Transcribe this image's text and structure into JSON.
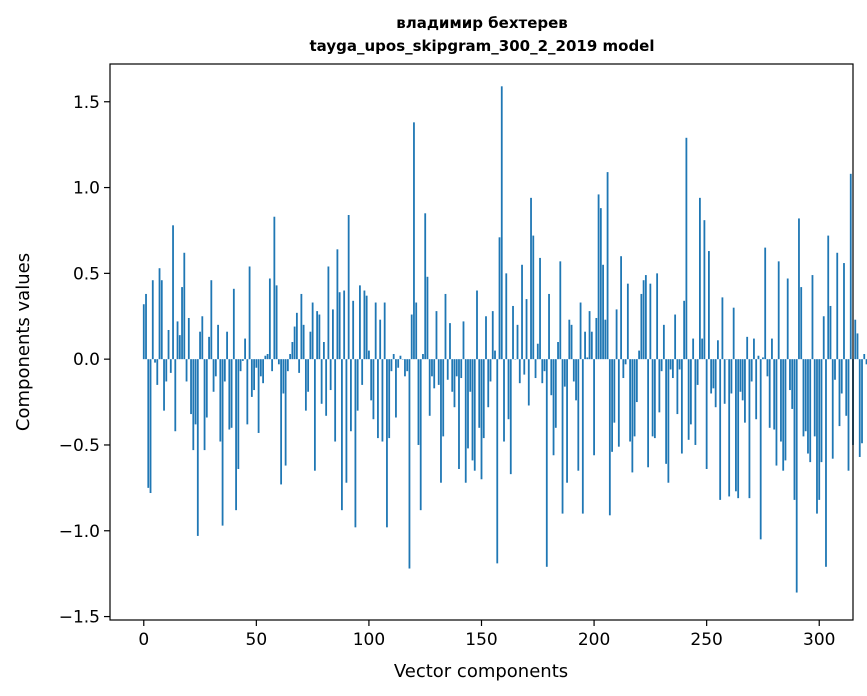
{
  "chart_data": {
    "type": "bar",
    "title_line1": "владимир бехтерев",
    "title_line2": "tayga_upos_skipgram_300_2_2019 model",
    "xlabel": "Vector components",
    "ylabel": "Components values",
    "xlim": [
      -15,
      315
    ],
    "ylim": [
      -1.52,
      1.72
    ],
    "x_ticks": [
      0,
      50,
      100,
      150,
      200,
      250,
      300
    ],
    "y_ticks": [
      -1.5,
      -1.0,
      -0.5,
      0.0,
      0.5,
      1.0,
      1.5
    ],
    "x_tick_labels": [
      "0",
      "50",
      "100",
      "150",
      "200",
      "250",
      "300"
    ],
    "y_tick_labels": [
      "−1.5",
      "−1.0",
      "−0.5",
      "0.0",
      "0.5",
      "1.0",
      "1.5"
    ],
    "bar_color": "#1f77b4",
    "values": [
      0.32,
      0.38,
      -0.75,
      -0.78,
      0.46,
      -0.02,
      -0.15,
      0.53,
      0.46,
      -0.3,
      -0.13,
      0.17,
      -0.08,
      0.78,
      -0.42,
      0.22,
      0.14,
      0.42,
      0.62,
      -0.13,
      0.24,
      -0.32,
      -0.53,
      -0.38,
      -1.03,
      0.16,
      0.25,
      -0.53,
      -0.34,
      0.13,
      0.46,
      -0.19,
      -0.1,
      0.2,
      -0.48,
      -0.97,
      -0.13,
      0.16,
      -0.41,
      -0.4,
      0.41,
      -0.88,
      -0.64,
      -0.07,
      -0.01,
      0.12,
      -0.38,
      0.54,
      -0.22,
      -0.18,
      -0.05,
      -0.43,
      -0.1,
      -0.14,
      0.02,
      0.03,
      0.47,
      -0.07,
      0.83,
      0.43,
      -0.03,
      -0.73,
      -0.2,
      -0.62,
      -0.07,
      0.03,
      0.1,
      0.19,
      0.27,
      -0.08,
      0.38,
      0.2,
      -0.3,
      -0.19,
      0.16,
      0.33,
      -0.65,
      0.28,
      0.26,
      -0.26,
      0.1,
      -0.33,
      0.54,
      -0.18,
      0.29,
      -0.48,
      0.64,
      0.39,
      -0.88,
      0.4,
      -0.72,
      0.84,
      -0.42,
      0.34,
      -0.98,
      -0.3,
      0.43,
      -0.15,
      0.4,
      0.37,
      0.05,
      -0.24,
      -0.35,
      0.33,
      -0.46,
      0.23,
      -0.48,
      0.33,
      -0.98,
      -0.46,
      -0.07,
      0.03,
      -0.34,
      -0.05,
      0.02,
      0.0,
      -0.1,
      -0.07,
      -1.22,
      0.26,
      1.38,
      0.33,
      -0.5,
      -0.88,
      0.03,
      0.85,
      0.48,
      -0.33,
      -0.1,
      -0.17,
      0.28,
      -0.15,
      -0.72,
      -0.45,
      0.38,
      -0.12,
      0.21,
      -0.19,
      -0.28,
      -0.1,
      -0.64,
      -0.11,
      0.22,
      -0.72,
      -0.52,
      -0.19,
      -0.59,
      -0.65,
      0.4,
      -0.4,
      -0.7,
      -0.46,
      0.25,
      -0.28,
      -0.13,
      0.28,
      0.05,
      -1.19,
      0.71,
      1.59,
      -0.48,
      0.5,
      -0.35,
      -0.67,
      0.31,
      0.0,
      0.2,
      -0.14,
      0.55,
      -0.09,
      0.35,
      -0.27,
      0.94,
      0.72,
      -0.11,
      0.09,
      0.59,
      -0.14,
      -0.07,
      -1.21,
      0.38,
      -0.21,
      -0.56,
      -0.4,
      0.1,
      0.57,
      -0.9,
      -0.16,
      -0.72,
      0.23,
      0.2,
      -0.13,
      -0.24,
      -0.65,
      0.33,
      -0.9,
      0.16,
      0.01,
      0.28,
      0.16,
      -0.56,
      0.24,
      0.96,
      0.88,
      0.55,
      0.23,
      1.09,
      -0.91,
      -0.54,
      -0.37,
      0.29,
      -0.51,
      0.6,
      -0.11,
      -0.03,
      0.44,
      -0.48,
      -0.66,
      -0.45,
      -0.25,
      0.05,
      0.38,
      0.46,
      0.49,
      -0.63,
      0.44,
      -0.45,
      -0.46,
      0.5,
      -0.31,
      -0.07,
      0.2,
      -0.61,
      -0.72,
      -0.06,
      -0.11,
      0.26,
      -0.32,
      -0.06,
      -0.55,
      0.34,
      1.29,
      -0.47,
      -0.38,
      0.12,
      -0.5,
      -0.15,
      0.94,
      0.12,
      0.81,
      -0.64,
      0.63,
      -0.2,
      -0.17,
      -0.28,
      0.11,
      -0.82,
      0.36,
      -0.26,
      0.0,
      -0.8,
      -0.2,
      0.3,
      -0.77,
      -0.81,
      -0.19,
      -0.24,
      -0.37,
      0.13,
      -0.81,
      -0.13,
      0.12,
      -0.35,
      0.02,
      -1.05,
      0.01,
      0.65,
      -0.1,
      -0.4,
      0.12,
      -0.41,
      -0.62,
      0.57,
      -0.48,
      -0.65,
      -0.59,
      0.47,
      -0.18,
      -0.29,
      -0.82,
      -1.36,
      0.82,
      0.42,
      -0.45,
      -0.42,
      -0.55,
      -0.6,
      0.49,
      -0.45,
      -0.9,
      -0.82,
      -0.6,
      0.25,
      -1.21,
      0.72,
      0.31,
      -0.58,
      -0.12,
      0.62,
      -0.39,
      -0.2,
      0.56,
      -0.33,
      -0.65,
      1.08,
      -0.5,
      0.23,
      0.15,
      -0.57,
      -0.49,
      0.03,
      -0.03
    ]
  }
}
